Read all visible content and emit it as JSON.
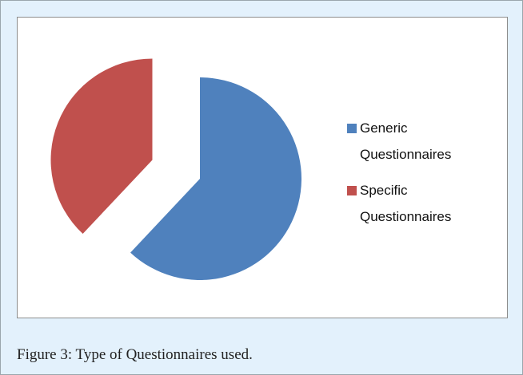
{
  "chart_data": {
    "type": "pie",
    "title": "Figure 3: Type of Questionnaires used.",
    "categories": [
      "Generic Questionnaires",
      "Specific Questionnaires"
    ],
    "values": [
      62,
      38
    ],
    "colors": [
      "#4f81bd",
      "#c0504d"
    ],
    "legend": "right"
  }
}
